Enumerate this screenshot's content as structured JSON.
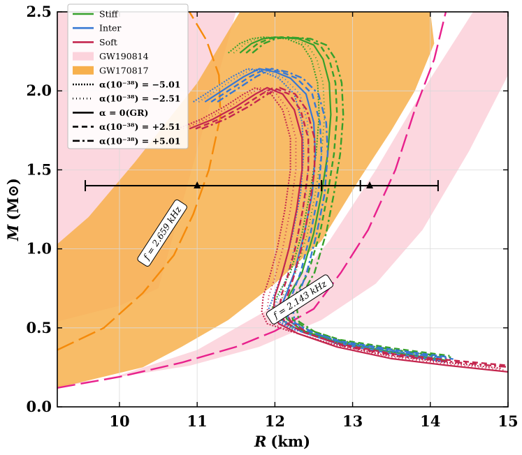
{
  "chart_data": {
    "type": "line",
    "xlabel_symbol": "R",
    "xlabel_unit": "(km)",
    "ylabel_symbol": "M",
    "ylabel_unit": "(M⊙)",
    "xlim": [
      9.2,
      15
    ],
    "ylim": [
      0,
      2.5
    ],
    "x_ticks": [
      10,
      11,
      12,
      13,
      14,
      15
    ],
    "y_ticks": [
      0.0,
      0.5,
      1.0,
      1.5,
      2.0,
      2.5
    ],
    "grid": true,
    "legend_position": "top-left",
    "colors": {
      "stiff": "#36a02c",
      "inter": "#3778d3",
      "soft": "#c4264e",
      "gw190814_band": "#fcd3dc",
      "gw170817_band": "#f7b04c",
      "freq_curve_outer": "#f58a0a",
      "freq_curve_inner": "#e8208c"
    },
    "legend": [
      {
        "label": "Stiff",
        "kind": "line",
        "color": "#36a02c"
      },
      {
        "label": "Inter",
        "kind": "line",
        "color": "#3778d3"
      },
      {
        "label": "Soft",
        "kind": "line",
        "color": "#c4264e"
      },
      {
        "label": "GW190814",
        "kind": "patch",
        "color": "#fcd3dc"
      },
      {
        "label": "GW170817",
        "kind": "patch",
        "color": "#f7b04c"
      },
      {
        "label": "α(10⁻³⁸) = −5.01",
        "kind": "style",
        "dash": "2,2"
      },
      {
        "label": "α(10⁻³⁸) = −2.51",
        "kind": "style",
        "dash": "1,4"
      },
      {
        "label": "α = 0(GR)",
        "kind": "style",
        "dash": ""
      },
      {
        "label": "α(10⁻³⁸) = +2.51",
        "kind": "style",
        "dash": "8,5"
      },
      {
        "label": "α(10⁻³⁸) = +5.01",
        "kind": "style",
        "dash": "10,4,3,4"
      }
    ],
    "alpha_offsets": [
      -0.15,
      -0.08,
      0.0,
      0.08,
      0.16
    ],
    "series": [
      {
        "name": "Stiff",
        "color": "#36a02c",
        "points": [
          [
            11.55,
            2.24
          ],
          [
            11.7,
            2.3
          ],
          [
            11.85,
            2.33
          ],
          [
            12.0,
            2.34
          ],
          [
            12.3,
            2.33
          ],
          [
            12.5,
            2.29
          ],
          [
            12.62,
            2.2
          ],
          [
            12.7,
            2.05
          ],
          [
            12.72,
            1.85
          ],
          [
            12.68,
            1.6
          ],
          [
            12.6,
            1.35
          ],
          [
            12.5,
            1.1
          ],
          [
            12.35,
            0.85
          ],
          [
            12.2,
            0.72
          ],
          [
            12.12,
            0.63
          ],
          [
            12.15,
            0.56
          ],
          [
            12.35,
            0.49
          ],
          [
            12.8,
            0.42
          ],
          [
            13.5,
            0.36
          ],
          [
            14.2,
            0.31
          ]
        ]
      },
      {
        "name": "Inter",
        "color": "#3778d3",
        "points": [
          [
            11.1,
            1.93
          ],
          [
            11.35,
            2.01
          ],
          [
            11.6,
            2.09
          ],
          [
            11.8,
            2.14
          ],
          [
            12.0,
            2.12
          ],
          [
            12.2,
            2.08
          ],
          [
            12.4,
            1.98
          ],
          [
            12.5,
            1.8
          ],
          [
            12.52,
            1.6
          ],
          [
            12.48,
            1.35
          ],
          [
            12.38,
            1.1
          ],
          [
            12.25,
            0.85
          ],
          [
            12.15,
            0.72
          ],
          [
            12.07,
            0.62
          ],
          [
            12.1,
            0.55
          ],
          [
            12.35,
            0.48
          ],
          [
            12.8,
            0.41
          ],
          [
            13.5,
            0.35
          ],
          [
            14.2,
            0.3
          ]
        ]
      },
      {
        "name": "Soft",
        "color": "#c4264e",
        "points": [
          [
            10.9,
            1.76
          ],
          [
            11.2,
            1.82
          ],
          [
            11.5,
            1.9
          ],
          [
            11.75,
            1.98
          ],
          [
            11.9,
            2.02
          ],
          [
            12.1,
            1.98
          ],
          [
            12.25,
            1.88
          ],
          [
            12.35,
            1.7
          ],
          [
            12.35,
            1.5
          ],
          [
            12.28,
            1.25
          ],
          [
            12.18,
            1.0
          ],
          [
            12.08,
            0.82
          ],
          [
            12.0,
            0.7
          ],
          [
            11.98,
            0.6
          ],
          [
            12.05,
            0.53
          ],
          [
            12.3,
            0.47
          ],
          [
            12.8,
            0.39
          ],
          [
            13.5,
            0.32
          ],
          [
            14.2,
            0.28
          ],
          [
            15.0,
            0.24
          ]
        ]
      }
    ],
    "bands": [
      {
        "name": "GW190814",
        "polygon": [
          [
            9.2,
            0.12
          ],
          [
            10.0,
            0.2
          ],
          [
            11.0,
            0.36
          ],
          [
            12.0,
            0.64
          ],
          [
            12.7,
            1.05
          ],
          [
            13.3,
            1.5
          ],
          [
            13.9,
            2.0
          ],
          [
            14.55,
            2.5
          ],
          [
            15.0,
            2.5
          ],
          [
            15.0,
            2.1
          ],
          [
            14.5,
            1.62
          ],
          [
            13.9,
            1.12
          ],
          [
            13.3,
            0.78
          ],
          [
            12.6,
            0.55
          ],
          [
            11.8,
            0.38
          ],
          [
            10.9,
            0.26
          ],
          [
            10.0,
            0.19
          ],
          [
            9.2,
            0.14
          ],
          [
            9.2,
            0.54
          ],
          [
            10.0,
            0.64
          ],
          [
            10.5,
            0.75
          ],
          [
            11.5,
            2.5
          ],
          [
            9.2,
            2.5
          ]
        ]
      },
      {
        "name": "GW170817",
        "polygon": [
          [
            9.2,
            1.03
          ],
          [
            9.6,
            1.2
          ],
          [
            10.2,
            1.55
          ],
          [
            11.0,
            2.05
          ],
          [
            11.55,
            2.5
          ],
          [
            14.0,
            2.5
          ],
          [
            14.05,
            2.3
          ],
          [
            13.8,
            2.0
          ],
          [
            13.5,
            1.75
          ],
          [
            13.1,
            1.45
          ],
          [
            12.6,
            1.05
          ],
          [
            12.0,
            0.78
          ],
          [
            11.4,
            0.55
          ],
          [
            10.8,
            0.38
          ],
          [
            10.3,
            0.25
          ],
          [
            9.2,
            0.12
          ]
        ]
      }
    ],
    "freq_curves": [
      {
        "label": "f = 2.659 kHz",
        "color": "#f58a0a",
        "points": [
          [
            9.2,
            0.36
          ],
          [
            9.8,
            0.5
          ],
          [
            10.3,
            0.72
          ],
          [
            10.7,
            0.96
          ],
          [
            10.95,
            1.22
          ],
          [
            11.15,
            1.5
          ],
          [
            11.3,
            1.84
          ],
          [
            11.28,
            2.1
          ],
          [
            11.12,
            2.32
          ],
          [
            10.9,
            2.5
          ]
        ]
      },
      {
        "label": "f = 2.143 kHz",
        "color": "#e8208c",
        "points": [
          [
            9.2,
            0.12
          ],
          [
            10.0,
            0.19
          ],
          [
            10.8,
            0.28
          ],
          [
            11.5,
            0.38
          ],
          [
            12.0,
            0.48
          ],
          [
            12.5,
            0.62
          ],
          [
            12.85,
            0.85
          ],
          [
            13.2,
            1.12
          ],
          [
            13.55,
            1.5
          ],
          [
            13.8,
            1.88
          ],
          [
            14.05,
            2.2
          ],
          [
            14.2,
            2.5
          ]
        ]
      }
    ],
    "error_bars": [
      {
        "y": 1.4,
        "x_center": 11.0,
        "x_min": 9.56,
        "x_max": 12.6
      },
      {
        "y": 1.4,
        "x_center": 13.22,
        "x_min": 12.6,
        "x_max": 14.1,
        "x_cap_extra": 13.1
      }
    ]
  }
}
